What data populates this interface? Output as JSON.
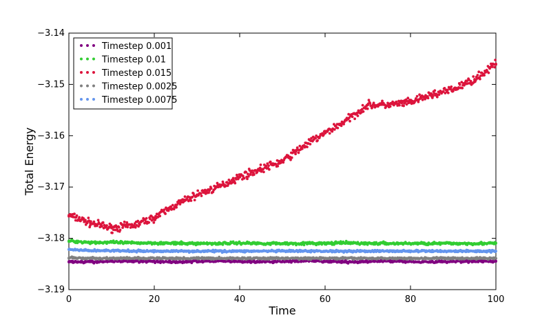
{
  "chart_data": {
    "type": "scatter",
    "title": "",
    "xlabel": "Time",
    "ylabel": "Total Energy",
    "xlim": [
      0,
      100
    ],
    "ylim": [
      -3.19,
      -3.14
    ],
    "xticks": [
      "0",
      "20",
      "40",
      "60",
      "80",
      "100"
    ],
    "yticks": [
      "−3.19",
      "−3.18",
      "−3.17",
      "−3.16",
      "−3.15",
      "−3.14"
    ],
    "grid": false,
    "legend_position": "top-left",
    "series": [
      {
        "name": "Timestep 0.001",
        "color": "#800080",
        "x": [
          0,
          5,
          10,
          15,
          20,
          25,
          30,
          35,
          40,
          45,
          50,
          55,
          60,
          65,
          70,
          75,
          80,
          85,
          90,
          95,
          100
        ],
        "y": [
          -3.1845,
          -3.1846,
          -3.1845,
          -3.1844,
          -3.1845,
          -3.1846,
          -3.1845,
          -3.1844,
          -3.1845,
          -3.1846,
          -3.1845,
          -3.1844,
          -3.1845,
          -3.1846,
          -3.1845,
          -3.1844,
          -3.1845,
          -3.1846,
          -3.1845,
          -3.1844,
          -3.1845
        ]
      },
      {
        "name": "Timestep 0.01",
        "color": "#32cd32",
        "x": [
          0,
          5,
          10,
          15,
          20,
          25,
          30,
          35,
          40,
          45,
          50,
          55,
          60,
          65,
          70,
          75,
          80,
          85,
          90,
          95,
          100
        ],
        "y": [
          -3.1805,
          -3.1808,
          -3.1808,
          -3.1809,
          -3.1809,
          -3.181,
          -3.181,
          -3.181,
          -3.1809,
          -3.181,
          -3.181,
          -3.181,
          -3.181,
          -3.1809,
          -3.181,
          -3.181,
          -3.181,
          -3.181,
          -3.181,
          -3.181,
          -3.181
        ]
      },
      {
        "name": "Timestep 0.015",
        "color": "#dc143c",
        "x": [
          0,
          5,
          10,
          15,
          20,
          25,
          30,
          35,
          40,
          45,
          50,
          55,
          60,
          65,
          70,
          75,
          80,
          85,
          90,
          95,
          100
        ],
        "y": [
          -3.1755,
          -3.177,
          -3.178,
          -3.1775,
          -3.176,
          -3.1735,
          -3.1715,
          -3.17,
          -3.168,
          -3.1665,
          -3.165,
          -3.162,
          -3.1595,
          -3.157,
          -3.154,
          -3.154,
          -3.1535,
          -3.152,
          -3.151,
          -3.149,
          -3.146
        ]
      },
      {
        "name": "Timestep 0.0025",
        "color": "#808080",
        "x": [
          0,
          5,
          10,
          15,
          20,
          25,
          30,
          35,
          40,
          45,
          50,
          55,
          60,
          65,
          70,
          75,
          80,
          85,
          90,
          95,
          100
        ],
        "y": [
          -3.1838,
          -3.1839,
          -3.1839,
          -3.1839,
          -3.1839,
          -3.1839,
          -3.1839,
          -3.1839,
          -3.1839,
          -3.1839,
          -3.1839,
          -3.1839,
          -3.1839,
          -3.1839,
          -3.1839,
          -3.1839,
          -3.1839,
          -3.1839,
          -3.1839,
          -3.1839,
          -3.1839
        ]
      },
      {
        "name": "Timestep 0.0075",
        "color": "#6495ed",
        "x": [
          0,
          5,
          10,
          15,
          20,
          25,
          30,
          35,
          40,
          45,
          50,
          55,
          60,
          65,
          70,
          75,
          80,
          85,
          90,
          95,
          100
        ],
        "y": [
          -3.1822,
          -3.1824,
          -3.1824,
          -3.1825,
          -3.1825,
          -3.1825,
          -3.1825,
          -3.1825,
          -3.1825,
          -3.1825,
          -3.1825,
          -3.1825,
          -3.1825,
          -3.1825,
          -3.1825,
          -3.1825,
          -3.1825,
          -3.1825,
          -3.1825,
          -3.1825,
          -3.1825
        ]
      }
    ]
  }
}
